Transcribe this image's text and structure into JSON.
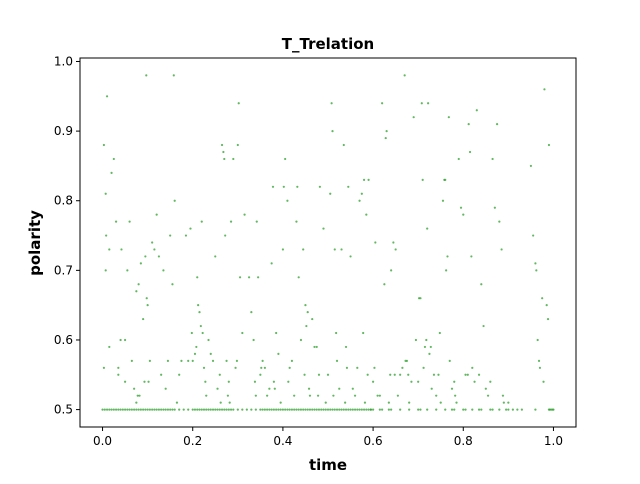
{
  "chart_data": {
    "type": "scatter",
    "title": "T_Trelation",
    "xlabel": "time",
    "ylabel": "polarity",
    "xlim": [
      -0.05,
      1.05
    ],
    "ylim": [
      0.475,
      1.005
    ],
    "xticks": [
      "0.0",
      "0.2",
      "0.4",
      "0.6",
      "0.8",
      "1.0"
    ],
    "xtick_values": [
      0.0,
      0.2,
      0.4,
      0.6,
      0.8,
      1.0
    ],
    "yticks": [
      "0.5",
      "0.6",
      "0.7",
      "0.8",
      "0.9",
      "1.0"
    ],
    "ytick_values": [
      0.5,
      0.6,
      0.7,
      0.8,
      0.9,
      1.0
    ],
    "grid": false,
    "marker_color": "#2ca02c",
    "points": [
      [
        0.003,
        0.88
      ],
      [
        0.007,
        0.81
      ],
      [
        0.008,
        0.75
      ],
      [
        0.007,
        0.7
      ],
      [
        0.003,
        0.56
      ],
      [
        0.01,
        0.95
      ],
      [
        0.015,
        0.73
      ],
      [
        0.015,
        0.59
      ],
      [
        0.02,
        0.84
      ],
      [
        0.025,
        0.86
      ],
      [
        0.03,
        0.77
      ],
      [
        0.035,
        0.56
      ],
      [
        0.035,
        0.55
      ],
      [
        0.04,
        0.6
      ],
      [
        0.042,
        0.73
      ],
      [
        0.05,
        0.54
      ],
      [
        0.05,
        0.6
      ],
      [
        0.055,
        0.7
      ],
      [
        0.06,
        0.77
      ],
      [
        0.065,
        0.57
      ],
      [
        0.07,
        0.53
      ],
      [
        0.075,
        0.51
      ],
      [
        0.075,
        0.67
      ],
      [
        0.078,
        0.52
      ],
      [
        0.08,
        0.68
      ],
      [
        0.082,
        0.52
      ],
      [
        0.085,
        0.71
      ],
      [
        0.09,
        0.63
      ],
      [
        0.093,
        0.54
      ],
      [
        0.095,
        0.72
      ],
      [
        0.097,
        0.98
      ],
      [
        0.098,
        0.66
      ],
      [
        0.1,
        0.65
      ],
      [
        0.102,
        0.54
      ],
      [
        0.105,
        0.57
      ],
      [
        0.11,
        0.74
      ],
      [
        0.115,
        0.73
      ],
      [
        0.12,
        0.78
      ],
      [
        0.125,
        0.72
      ],
      [
        0.13,
        0.55
      ],
      [
        0.135,
        0.7
      ],
      [
        0.14,
        0.53
      ],
      [
        0.145,
        0.57
      ],
      [
        0.15,
        0.75
      ],
      [
        0.155,
        0.68
      ],
      [
        0.158,
        0.98
      ],
      [
        0.16,
        0.8
      ],
      [
        0.165,
        0.51
      ],
      [
        0.17,
        0.55
      ],
      [
        0.175,
        0.57
      ],
      [
        0.185,
        0.75
      ],
      [
        0.19,
        0.57
      ],
      [
        0.195,
        0.76
      ],
      [
        0.198,
        0.61
      ],
      [
        0.2,
        0.57
      ],
      [
        0.205,
        0.58
      ],
      [
        0.208,
        0.59
      ],
      [
        0.21,
        0.69
      ],
      [
        0.212,
        0.65
      ],
      [
        0.215,
        0.64
      ],
      [
        0.218,
        0.62
      ],
      [
        0.22,
        0.77
      ],
      [
        0.222,
        0.61
      ],
      [
        0.225,
        0.56
      ],
      [
        0.228,
        0.54
      ],
      [
        0.23,
        0.52
      ],
      [
        0.235,
        0.6
      ],
      [
        0.24,
        0.58
      ],
      [
        0.245,
        0.57
      ],
      [
        0.25,
        0.72
      ],
      [
        0.255,
        0.53
      ],
      [
        0.26,
        0.55
      ],
      [
        0.262,
        0.51
      ],
      [
        0.265,
        0.88
      ],
      [
        0.268,
        0.87
      ],
      [
        0.27,
        0.86
      ],
      [
        0.272,
        0.75
      ],
      [
        0.275,
        0.57
      ],
      [
        0.278,
        0.52
      ],
      [
        0.28,
        0.54
      ],
      [
        0.282,
        0.51
      ],
      [
        0.285,
        0.77
      ],
      [
        0.29,
        0.86
      ],
      [
        0.295,
        0.56
      ],
      [
        0.298,
        0.57
      ],
      [
        0.3,
        0.88
      ],
      [
        0.302,
        0.94
      ],
      [
        0.305,
        0.69
      ],
      [
        0.31,
        0.61
      ],
      [
        0.315,
        0.78
      ],
      [
        0.325,
        0.69
      ],
      [
        0.33,
        0.64
      ],
      [
        0.335,
        0.6
      ],
      [
        0.338,
        0.54
      ],
      [
        0.34,
        0.52
      ],
      [
        0.342,
        0.77
      ],
      [
        0.345,
        0.69
      ],
      [
        0.35,
        0.55
      ],
      [
        0.352,
        0.56
      ],
      [
        0.355,
        0.57
      ],
      [
        0.36,
        0.56
      ],
      [
        0.365,
        0.52
      ],
      [
        0.37,
        0.53
      ],
      [
        0.375,
        0.71
      ],
      [
        0.378,
        0.82
      ],
      [
        0.38,
        0.54
      ],
      [
        0.382,
        0.53
      ],
      [
        0.385,
        0.61
      ],
      [
        0.39,
        0.58
      ],
      [
        0.395,
        0.51
      ],
      [
        0.4,
        0.73
      ],
      [
        0.402,
        0.82
      ],
      [
        0.405,
        0.86
      ],
      [
        0.41,
        0.8
      ],
      [
        0.412,
        0.54
      ],
      [
        0.415,
        0.56
      ],
      [
        0.42,
        0.57
      ],
      [
        0.425,
        0.52
      ],
      [
        0.43,
        0.77
      ],
      [
        0.432,
        0.82
      ],
      [
        0.435,
        0.69
      ],
      [
        0.44,
        0.6
      ],
      [
        0.445,
        0.73
      ],
      [
        0.448,
        0.55
      ],
      [
        0.45,
        0.65
      ],
      [
        0.452,
        0.62
      ],
      [
        0.455,
        0.64
      ],
      [
        0.458,
        0.53
      ],
      [
        0.46,
        0.52
      ],
      [
        0.465,
        0.63
      ],
      [
        0.47,
        0.59
      ],
      [
        0.475,
        0.59
      ],
      [
        0.478,
        0.52
      ],
      [
        0.48,
        0.55
      ],
      [
        0.482,
        0.82
      ],
      [
        0.49,
        0.76
      ],
      [
        0.495,
        0.51
      ],
      [
        0.5,
        0.55
      ],
      [
        0.505,
        0.81
      ],
      [
        0.508,
        0.94
      ],
      [
        0.51,
        0.9
      ],
      [
        0.512,
        0.52
      ],
      [
        0.515,
        0.73
      ],
      [
        0.518,
        0.61
      ],
      [
        0.52,
        0.57
      ],
      [
        0.525,
        0.53
      ],
      [
        0.53,
        0.73
      ],
      [
        0.535,
        0.88
      ],
      [
        0.538,
        0.51
      ],
      [
        0.54,
        0.59
      ],
      [
        0.542,
        0.56
      ],
      [
        0.545,
        0.82
      ],
      [
        0.55,
        0.72
      ],
      [
        0.555,
        0.53
      ],
      [
        0.56,
        0.52
      ],
      [
        0.565,
        0.56
      ],
      [
        0.57,
        0.8
      ],
      [
        0.575,
        0.81
      ],
      [
        0.578,
        0.61
      ],
      [
        0.58,
        0.83
      ],
      [
        0.582,
        0.51
      ],
      [
        0.585,
        0.78
      ],
      [
        0.588,
        0.55
      ],
      [
        0.59,
        0.83
      ],
      [
        0.595,
        0.5
      ],
      [
        0.6,
        0.54
      ],
      [
        0.603,
        0.56
      ],
      [
        0.605,
        0.74
      ],
      [
        0.61,
        0.52
      ],
      [
        0.615,
        0.52
      ],
      [
        0.62,
        0.94
      ],
      [
        0.625,
        0.68
      ],
      [
        0.628,
        0.89
      ],
      [
        0.63,
        0.9
      ],
      [
        0.635,
        0.51
      ],
      [
        0.638,
        0.55
      ],
      [
        0.64,
        0.7
      ],
      [
        0.645,
        0.74
      ],
      [
        0.648,
        0.55
      ],
      [
        0.65,
        0.73
      ],
      [
        0.655,
        0.52
      ],
      [
        0.66,
        0.55
      ],
      [
        0.665,
        0.56
      ],
      [
        0.67,
        0.98
      ],
      [
        0.672,
        0.57
      ],
      [
        0.675,
        0.57
      ],
      [
        0.678,
        0.55
      ],
      [
        0.68,
        0.51
      ],
      [
        0.685,
        0.54
      ],
      [
        0.69,
        0.92
      ],
      [
        0.695,
        0.6
      ],
      [
        0.7,
        0.54
      ],
      [
        0.702,
        0.66
      ],
      [
        0.705,
        0.66
      ],
      [
        0.708,
        0.94
      ],
      [
        0.71,
        0.83
      ],
      [
        0.712,
        0.56
      ],
      [
        0.715,
        0.59
      ],
      [
        0.718,
        0.6
      ],
      [
        0.72,
        0.76
      ],
      [
        0.722,
        0.94
      ],
      [
        0.725,
        0.58
      ],
      [
        0.728,
        0.59
      ],
      [
        0.73,
        0.53
      ],
      [
        0.735,
        0.55
      ],
      [
        0.74,
        0.52
      ],
      [
        0.745,
        0.55
      ],
      [
        0.748,
        0.61
      ],
      [
        0.75,
        0.51
      ],
      [
        0.755,
        0.8
      ],
      [
        0.758,
        0.83
      ],
      [
        0.76,
        0.83
      ],
      [
        0.762,
        0.7
      ],
      [
        0.765,
        0.72
      ],
      [
        0.768,
        0.92
      ],
      [
        0.77,
        0.57
      ],
      [
        0.775,
        0.53
      ],
      [
        0.78,
        0.54
      ],
      [
        0.782,
        0.52
      ],
      [
        0.785,
        0.51
      ],
      [
        0.79,
        0.86
      ],
      [
        0.795,
        0.79
      ],
      [
        0.8,
        0.78
      ],
      [
        0.805,
        0.55
      ],
      [
        0.81,
        0.55
      ],
      [
        0.812,
        0.91
      ],
      [
        0.815,
        0.87
      ],
      [
        0.818,
        0.72
      ],
      [
        0.82,
        0.56
      ],
      [
        0.825,
        0.54
      ],
      [
        0.83,
        0.93
      ],
      [
        0.835,
        0.55
      ],
      [
        0.84,
        0.68
      ],
      [
        0.845,
        0.62
      ],
      [
        0.85,
        0.53
      ],
      [
        0.855,
        0.52
      ],
      [
        0.86,
        0.54
      ],
      [
        0.865,
        0.86
      ],
      [
        0.87,
        0.79
      ],
      [
        0.875,
        0.91
      ],
      [
        0.88,
        0.77
      ],
      [
        0.885,
        0.73
      ],
      [
        0.888,
        0.52
      ],
      [
        0.89,
        0.51
      ],
      [
        0.9,
        0.51
      ],
      [
        0.91,
        0.5
      ],
      [
        0.92,
        0.5
      ],
      [
        0.95,
        0.85
      ],
      [
        0.955,
        0.75
      ],
      [
        0.96,
        0.71
      ],
      [
        0.962,
        0.7
      ],
      [
        0.965,
        0.6
      ],
      [
        0.968,
        0.57
      ],
      [
        0.97,
        0.56
      ],
      [
        0.975,
        0.66
      ],
      [
        0.978,
        0.54
      ],
      [
        0.98,
        0.96
      ],
      [
        0.985,
        0.65
      ],
      [
        0.988,
        0.63
      ],
      [
        0.99,
        0.88
      ],
      [
        0.992,
        0.5
      ],
      [
        0.995,
        0.5
      ],
      [
        0.998,
        0.5
      ]
    ],
    "baseline_x": [
      0.0,
      0.01,
      0.02,
      0.03,
      0.04,
      0.05,
      0.06,
      0.07,
      0.08,
      0.09,
      0.1,
      0.11,
      0.12,
      0.13,
      0.14,
      0.15,
      0.16,
      0.17,
      0.18,
      0.19,
      0.2,
      0.21,
      0.22,
      0.23,
      0.24,
      0.25,
      0.26,
      0.27,
      0.28,
      0.29,
      0.3,
      0.31,
      0.32,
      0.33,
      0.34,
      0.35,
      0.36,
      0.37,
      0.38,
      0.39,
      0.4,
      0.41,
      0.42,
      0.43,
      0.44,
      0.45,
      0.46,
      0.47,
      0.48,
      0.49,
      0.5,
      0.51,
      0.52,
      0.53,
      0.54,
      0.55,
      0.56,
      0.57,
      0.58,
      0.59,
      0.6,
      0.62,
      0.64,
      0.66,
      0.68,
      0.7,
      0.72,
      0.74,
      0.76,
      0.78,
      0.8,
      0.82,
      0.84,
      0.86,
      0.88,
      0.9,
      0.93,
      0.96,
      0.99,
      1.0,
      0.005,
      0.015,
      0.025,
      0.035,
      0.045,
      0.055,
      0.065,
      0.075,
      0.085,
      0.095,
      0.105,
      0.115,
      0.125,
      0.135,
      0.145,
      0.155,
      0.205,
      0.215,
      0.225,
      0.235,
      0.245,
      0.255,
      0.265,
      0.275,
      0.285,
      0.355,
      0.365,
      0.375,
      0.385,
      0.395,
      0.405,
      0.415,
      0.425,
      0.435,
      0.445,
      0.455,
      0.465,
      0.475,
      0.485,
      0.495,
      0.505,
      0.515,
      0.525,
      0.535,
      0.545,
      0.555,
      0.565,
      0.575,
      0.585,
      0.595,
      0.615,
      0.635,
      0.705,
      0.775,
      0.805,
      0.835,
      0.865,
      0.895
    ]
  }
}
